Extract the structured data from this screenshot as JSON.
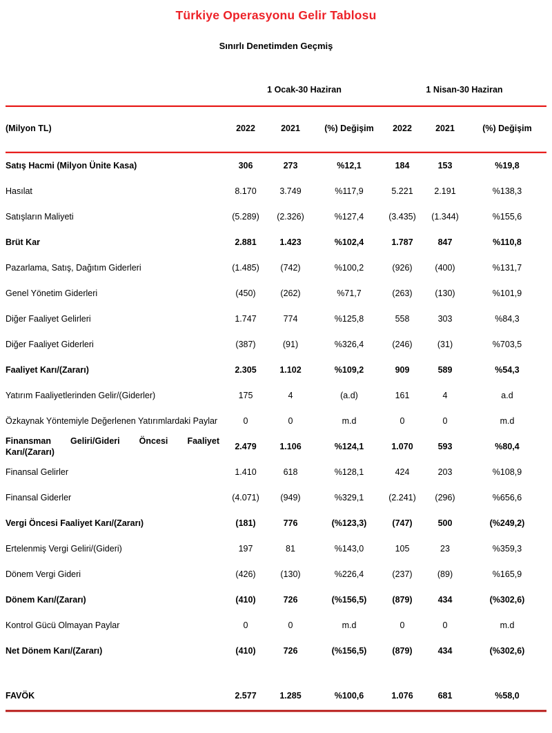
{
  "title": "Türkiye Operasyonu Gelir Tablosu",
  "subtitle": "Sınırlı Denetimden Geçmiş",
  "colors": {
    "accent_red": "#ED2228",
    "rule_red": "#E8201E",
    "thick_red": "#B51212"
  },
  "table": {
    "group_headers": [
      "1 Ocak-30 Haziran",
      "1 Nisan-30 Haziran"
    ],
    "unit_label": "(Milyon TL)",
    "column_headers": [
      "2022",
      "2021",
      "(%) Değişim",
      "2022",
      "2021",
      "(%) Değişim"
    ],
    "rows": [
      {
        "label": "Satış Hacmi (Milyon Ünite Kasa)",
        "values": [
          "306",
          "273",
          "%12,1",
          "184",
          "153",
          "%19,8"
        ],
        "bold": true
      },
      {
        "label": "Hasılat",
        "values": [
          "8.170",
          "3.749",
          "%117,9",
          "5.221",
          "2.191",
          "%138,3"
        ],
        "bold": false
      },
      {
        "label": "Satışların Maliyeti",
        "values": [
          "(5.289)",
          "(2.326)",
          "%127,4",
          "(3.435)",
          "(1.344)",
          "%155,6"
        ],
        "bold": false
      },
      {
        "label": "Brüt Kar",
        "values": [
          "2.881",
          "1.423",
          "%102,4",
          "1.787",
          "847",
          "%110,8"
        ],
        "bold": true
      },
      {
        "label": "Pazarlama, Satış, Dağıtım Giderleri",
        "values": [
          "(1.485)",
          "(742)",
          "%100,2",
          "(926)",
          "(400)",
          "%131,7"
        ],
        "bold": false
      },
      {
        "label": "Genel Yönetim Giderleri",
        "values": [
          "(450)",
          "(262)",
          "%71,7",
          "(263)",
          "(130)",
          "%101,9"
        ],
        "bold": false
      },
      {
        "label": "Diğer Faaliyet Gelirleri",
        "values": [
          "1.747",
          "774",
          "%125,8",
          "558",
          "303",
          "%84,3"
        ],
        "bold": false
      },
      {
        "label": "Diğer Faaliyet Giderleri",
        "values": [
          "(387)",
          "(91)",
          "%326,4",
          "(246)",
          "(31)",
          "%703,5"
        ],
        "bold": false
      },
      {
        "label": "Faaliyet Karı/(Zararı)",
        "values": [
          "2.305",
          "1.102",
          "%109,2",
          "909",
          "589",
          "%54,3"
        ],
        "bold": true
      },
      {
        "label": "Yatırım Faaliyetlerinden Gelir/(Giderler)",
        "values": [
          "175",
          "4",
          "(a.d)",
          "161",
          "4",
          "a.d"
        ],
        "bold": false
      },
      {
        "label": "Özkaynak Yöntemiyle Değerlenen Yatırımlardaki Paylar",
        "values": [
          "0",
          "0",
          "m.d",
          "0",
          "0",
          "m.d"
        ],
        "bold": false
      },
      {
        "label": "Finansman Geliri/Gideri Öncesi Faaliyet Karı/(Zararı)",
        "values": [
          "2.479",
          "1.106",
          "%124,1",
          "1.070",
          "593",
          "%80,4"
        ],
        "bold": true,
        "justify": true
      },
      {
        "label": "Finansal Gelirler",
        "values": [
          "1.410",
          "618",
          "%128,1",
          "424",
          "203",
          "%108,9"
        ],
        "bold": false
      },
      {
        "label": "Finansal Giderler",
        "values": [
          "(4.071)",
          "(949)",
          "%329,1",
          "(2.241)",
          "(296)",
          "%656,6"
        ],
        "bold": false
      },
      {
        "label": "Vergi Öncesi Faaliyet Karı/(Zararı)",
        "values": [
          "(181)",
          "776",
          "(%123,3)",
          "(747)",
          "500",
          "(%249,2)"
        ],
        "bold": true
      },
      {
        "label": "Ertelenmiş Vergi Geliri/(Gideri)",
        "values": [
          "197",
          "81",
          "%143,0",
          "105",
          "23",
          "%359,3"
        ],
        "bold": false
      },
      {
        "label": "Dönem Vergi Gideri",
        "values": [
          "(426)",
          "(130)",
          "%226,4",
          "(237)",
          "(89)",
          "%165,9"
        ],
        "bold": false
      },
      {
        "label": "Dönem Karı/(Zararı)",
        "values": [
          "(410)",
          "726",
          "(%156,5)",
          "(879)",
          "434",
          "(%302,6)"
        ],
        "bold": true
      },
      {
        "label": "Kontrol Gücü Olmayan Paylar",
        "values": [
          "0",
          "0",
          "m.d",
          "0",
          "0",
          "m.d"
        ],
        "bold": false
      },
      {
        "label": "Net Dönem Karı/(Zararı)",
        "values": [
          "(410)",
          "726",
          "(%156,5)",
          "(879)",
          "434",
          "(%302,6)"
        ],
        "bold": true
      },
      {
        "label": "FAVÖK",
        "values": [
          "2.577",
          "1.285",
          "%100,6",
          "1.076",
          "681",
          "%58,0"
        ],
        "bold": true,
        "gap_before": true
      }
    ]
  }
}
